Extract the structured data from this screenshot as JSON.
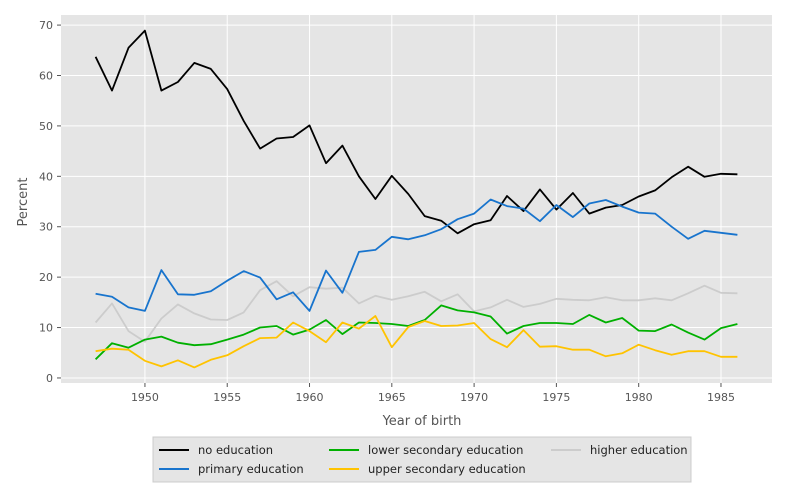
{
  "chart_data": {
    "type": "line",
    "title": "",
    "xlabel": "Year of birth",
    "ylabel": "Percent",
    "xlim": [
      1944.9,
      1988.1
    ],
    "ylim": [
      -1.0,
      72.0
    ],
    "xticks": [
      1950,
      1955,
      1960,
      1965,
      1970,
      1975,
      1980,
      1985
    ],
    "yticks": [
      0,
      10,
      20,
      30,
      40,
      50,
      60,
      70
    ],
    "grid": true,
    "legend_position": "bottom-center",
    "x": [
      1947,
      1948,
      1949,
      1950,
      1951,
      1952,
      1953,
      1954,
      1955,
      1956,
      1957,
      1958,
      1959,
      1960,
      1961,
      1962,
      1963,
      1964,
      1965,
      1966,
      1967,
      1968,
      1969,
      1970,
      1971,
      1972,
      1973,
      1974,
      1975,
      1976,
      1977,
      1978,
      1979,
      1980,
      1981,
      1982,
      1983,
      1984,
      1985,
      1986
    ],
    "series": [
      {
        "name": "no education",
        "color": "#000000",
        "values": [
          63.7,
          57.0,
          65.5,
          68.9,
          57.0,
          58.7,
          62.5,
          61.3,
          57.3,
          51.0,
          45.5,
          47.5,
          47.8,
          50.1,
          42.6,
          46.1,
          40.0,
          35.5,
          40.1,
          36.5,
          32.1,
          31.2,
          28.7,
          30.5,
          31.3,
          36.1,
          33.1,
          37.4,
          33.4,
          36.7,
          32.6,
          33.8,
          34.3,
          36.0,
          37.2,
          39.8,
          41.9,
          39.9,
          40.5,
          40.4
        ]
      },
      {
        "name": "primary education",
        "color": "#1874cd",
        "values": [
          16.7,
          16.1,
          14.0,
          13.3,
          21.4,
          16.6,
          16.5,
          17.2,
          19.3,
          21.2,
          19.9,
          15.6,
          17.0,
          13.3,
          21.3,
          16.9,
          25.0,
          25.4,
          28.0,
          27.5,
          28.3,
          29.5,
          31.5,
          32.6,
          35.4,
          34.1,
          33.6,
          31.1,
          34.3,
          31.9,
          34.6,
          35.3,
          34.0,
          32.8,
          32.6,
          30.0,
          27.6,
          29.2,
          28.8,
          28.4
        ]
      },
      {
        "name": "lower secondary education",
        "color": "#00b000",
        "values": [
          3.7,
          6.9,
          6.0,
          7.6,
          8.2,
          7.0,
          6.5,
          6.7,
          7.6,
          8.6,
          10.0,
          10.3,
          8.6,
          9.6,
          11.5,
          8.7,
          11.0,
          10.9,
          10.7,
          10.3,
          11.5,
          14.4,
          13.4,
          13.0,
          12.2,
          8.8,
          10.3,
          10.9,
          10.9,
          10.7,
          12.5,
          11.0,
          11.9,
          9.4,
          9.3,
          10.6,
          9.0,
          7.6,
          9.9,
          10.7
        ]
      },
      {
        "name": "upper secondary education",
        "color": "#ffc300",
        "values": [
          5.3,
          5.8,
          5.6,
          3.4,
          2.3,
          3.5,
          2.1,
          3.6,
          4.5,
          6.3,
          7.9,
          8.0,
          11.0,
          9.3,
          7.1,
          11.0,
          9.8,
          12.3,
          6.1,
          10.1,
          11.3,
          10.3,
          10.4,
          10.9,
          7.7,
          6.1,
          9.5,
          6.2,
          6.3,
          5.6,
          5.6,
          4.3,
          4.9,
          6.6,
          5.5,
          4.6,
          5.3,
          5.3,
          4.2,
          4.2
        ]
      },
      {
        "name": "higher education",
        "color": "#cccccc",
        "values": [
          11.0,
          14.8,
          9.3,
          7.2,
          11.8,
          14.6,
          12.8,
          11.6,
          11.5,
          13.0,
          17.4,
          19.2,
          16.2,
          18.0,
          17.7,
          17.9,
          14.8,
          16.3,
          15.5,
          16.2,
          17.1,
          15.2,
          16.6,
          13.2,
          14.0,
          15.5,
          14.1,
          14.7,
          15.7,
          15.5,
          15.4,
          16.0,
          15.4,
          15.4,
          15.8,
          15.4,
          16.8,
          18.3,
          16.9,
          16.8
        ]
      }
    ]
  }
}
